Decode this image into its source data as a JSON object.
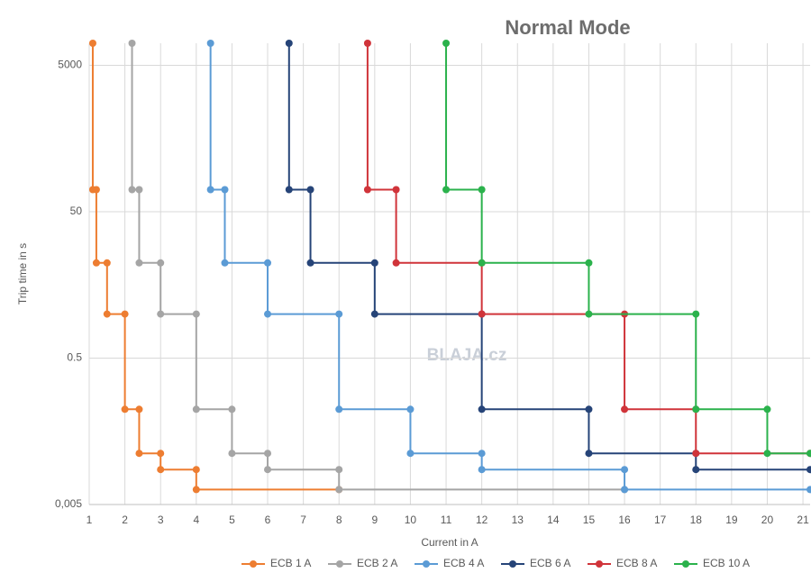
{
  "chart_data": {
    "type": "step-line",
    "title": "Normal Mode",
    "x_label": "Current in A",
    "y_label": "Trip time in s",
    "annotation": "BLAJA.cz",
    "xlim": [
      1,
      21.2
    ],
    "xticks": [
      1,
      2,
      3,
      4,
      5,
      6,
      7,
      8,
      9,
      10,
      11,
      12,
      13,
      14,
      15,
      16,
      17,
      18,
      19,
      20,
      21
    ],
    "ylim": [
      0.005,
      10000
    ],
    "yscale": "log",
    "yticks": [
      {
        "value": 0.005,
        "label": "0,005"
      },
      0.5,
      50,
      5000
    ],
    "grid": true,
    "series": [
      {
        "name": "ECB 1 A",
        "color": "#ed7d31",
        "x": [
          1.1,
          1.1,
          1.2,
          1.2,
          1.5,
          1.5,
          2,
          2,
          2.4,
          2.4,
          3,
          3,
          4,
          4,
          8
        ],
        "values": [
          10000,
          100,
          100,
          10,
          10,
          2,
          2,
          0.1,
          0.1,
          0.025,
          0.025,
          0.015,
          0.015,
          0.008,
          0.008
        ]
      },
      {
        "name": "ECB 2 A",
        "color": "#a5a5a5",
        "x": [
          2.2,
          2.2,
          2.4,
          2.4,
          3,
          3,
          4,
          4,
          5,
          5,
          6,
          6,
          8,
          8,
          16
        ],
        "values": [
          10000,
          100,
          100,
          10,
          10,
          2,
          2,
          0.1,
          0.1,
          0.025,
          0.025,
          0.015,
          0.015,
          0.008,
          0.008
        ]
      },
      {
        "name": "ECB 4 A",
        "color": "#5b9bd5",
        "x": [
          4.4,
          4.4,
          4.8,
          4.8,
          6,
          6,
          8,
          8,
          10,
          10,
          12,
          12,
          16,
          16,
          21.2
        ],
        "values": [
          10000,
          100,
          100,
          10,
          10,
          2,
          2,
          0.1,
          0.1,
          0.025,
          0.025,
          0.015,
          0.015,
          0.008,
          0.008
        ]
      },
      {
        "name": "ECB 6 A",
        "color": "#264478",
        "x": [
          6.6,
          6.6,
          7.2,
          7.2,
          9,
          9,
          12,
          12,
          15,
          15,
          18,
          18,
          21.2
        ],
        "values": [
          10000,
          100,
          100,
          10,
          10,
          2,
          2,
          0.1,
          0.1,
          0.025,
          0.025,
          0.015,
          0.015
        ]
      },
      {
        "name": "ECB 8 A",
        "color": "#d0343a",
        "x": [
          8.8,
          8.8,
          9.6,
          9.6,
          12,
          12,
          16,
          16,
          18,
          18,
          21.2
        ],
        "values": [
          10000,
          100,
          100,
          10,
          10,
          2,
          2,
          0.1,
          0.1,
          0.025,
          0.025
        ]
      },
      {
        "name": "ECB 10 A",
        "color": "#2bb24c",
        "x": [
          11,
          11,
          12,
          12,
          15,
          15,
          18,
          18,
          20,
          20,
          21.2
        ],
        "values": [
          10000,
          100,
          100,
          10,
          10,
          2,
          2,
          0.1,
          0.1,
          0.025,
          0.025
        ]
      }
    ]
  }
}
